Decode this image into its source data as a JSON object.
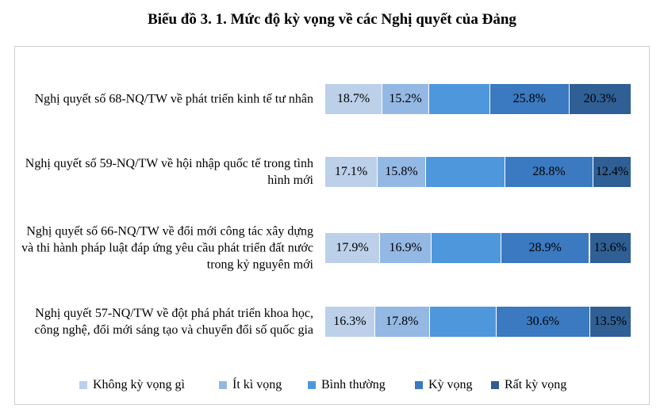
{
  "chart_data": {
    "type": "stacked-bar-horizontal",
    "title": "Biểu đồ 3. 1. Mức độ kỳ vọng về các Nghị quyết của Đảng",
    "categories": [
      "Nghị quyết số 68-NQ/TW về phát triển kinh tế tư nhân",
      "Nghị quyết số 59-NQ/TW về hội nhập quốc tế trong tình hình mới",
      "Nghị quyết số 66-NQ/TW về đổi mới công tác xây dựng và thi hành pháp luật đáp ứng yêu cầu phát triển đất nước trong kỷ nguyên mới",
      "Nghị quyết 57-NQ/TW về đột phá phát triển khoa học, công nghệ, đổi mới sáng tạo và chuyển đổi số quốc gia"
    ],
    "xlim": [
      0,
      100
    ],
    "series": [
      {
        "name": "Không kỳ vọng gì",
        "color": "#bcd0ea",
        "values": [
          18.7,
          17.1,
          17.9,
          16.3
        ],
        "value_labels": [
          "18.7%",
          "17.1%",
          "17.9%",
          "16.3%"
        ]
      },
      {
        "name": "Ít kì vọng",
        "color": "#94b8e4",
        "values": [
          15.2,
          15.8,
          16.9,
          17.8
        ],
        "value_labels": [
          "15.2%",
          "15.8%",
          "16.9%",
          "17.8%"
        ]
      },
      {
        "name": "Bình thường",
        "color": "#4f97dc",
        "values": [
          20.0,
          25.9,
          22.7,
          21.8
        ]
      },
      {
        "name": "Kỳ vọng",
        "color": "#3b79c0",
        "values": [
          25.8,
          28.8,
          28.9,
          30.6
        ],
        "value_labels": [
          "25.8%",
          "28.8%",
          "28.9%",
          "30.6%"
        ]
      },
      {
        "name": "Rất kỳ vọng",
        "color": "#2f5f94",
        "values": [
          20.3,
          12.4,
          13.6,
          13.5
        ],
        "value_labels": [
          "20.3%",
          "12.4%",
          "13.6%",
          "13.5%"
        ]
      }
    ],
    "legend": "bottom"
  }
}
